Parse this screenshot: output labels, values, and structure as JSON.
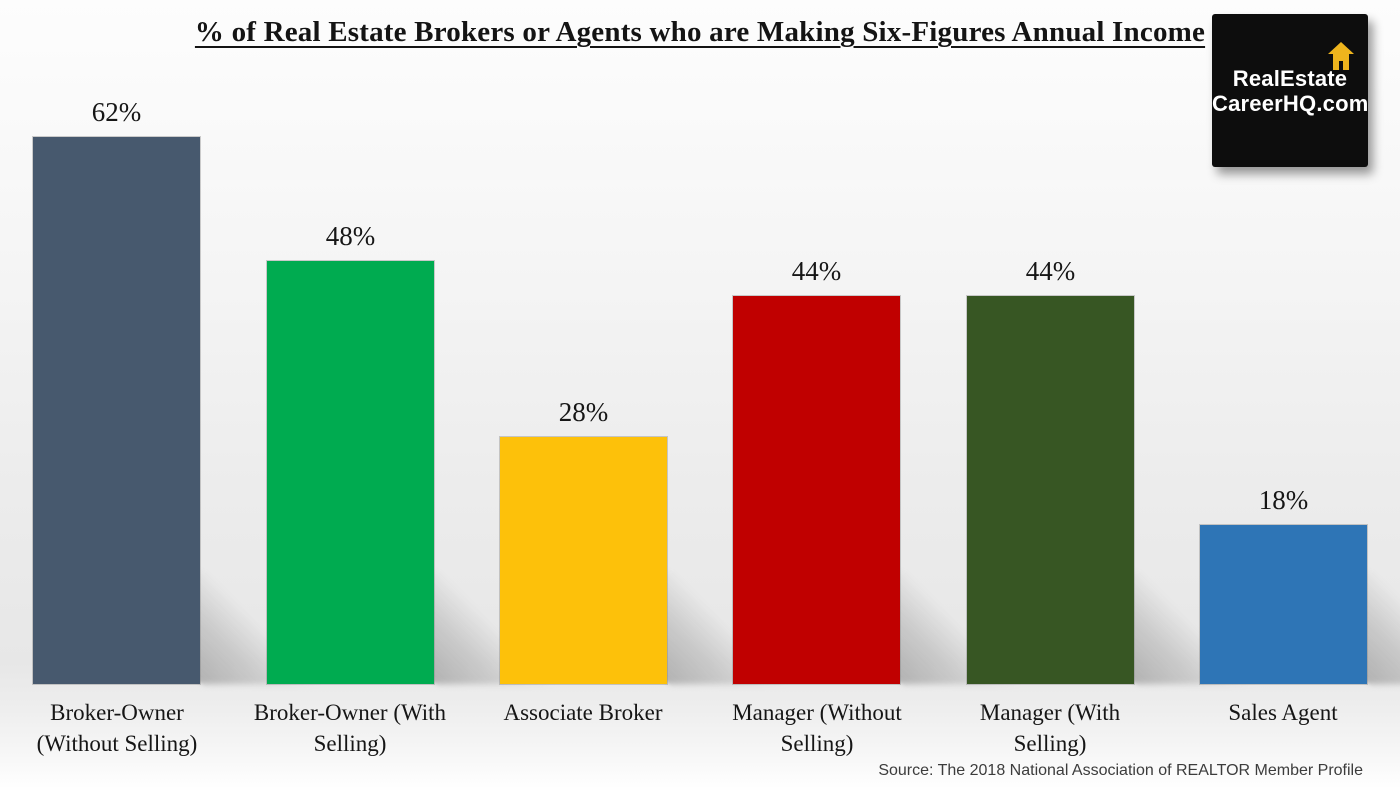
{
  "title": "% of Real Estate Brokers or Agents who are Making Six-Figures Annual Income",
  "logo": {
    "line1": "RealEstate",
    "line2": "CareerHQ.com",
    "bg_color": "#0d0d0d",
    "text_color": "#ffffff",
    "house_color": "#eeb41d"
  },
  "source": "Source: The 2018 National Association of REALTOR Member Profile",
  "chart_data": {
    "type": "bar",
    "title": "% of Real Estate Brokers or Agents who are Making Six-Figures Annual Income",
    "categories": [
      "Broker-Owner (Without Selling)",
      "Broker-Owner (With Selling)",
      "Associate Broker",
      "Manager (Without Selling)",
      "Manager (With Selling)",
      "Sales Agent"
    ],
    "category_label_lines": [
      [
        "Broker-Owner",
        "(Without Selling)"
      ],
      [
        "Broker-Owner (With",
        "Selling)"
      ],
      [
        "Associate Broker"
      ],
      [
        "Manager (Without",
        "Selling)"
      ],
      [
        "Manager (With",
        "Selling)"
      ],
      [
        "Sales Agent"
      ]
    ],
    "values": [
      62,
      48,
      28,
      44,
      44,
      18
    ],
    "value_labels": [
      "62%",
      "48%",
      "28%",
      "44%",
      "44%",
      "18%"
    ],
    "bar_colors": [
      "#47596e",
      "#00ab50",
      "#fdc10a",
      "#c00000",
      "#375623",
      "#2e75b6"
    ],
    "xlabel": "",
    "ylabel": "",
    "ylim": [
      0,
      70
    ],
    "grid": false,
    "legend": null,
    "bar_effect": "diagonal floor shadow to bottom-right of each bar"
  }
}
